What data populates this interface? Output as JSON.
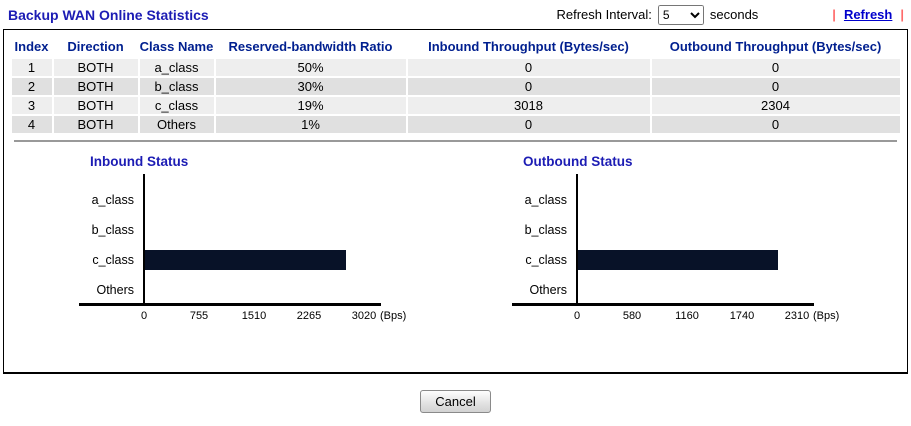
{
  "header": {
    "title": "Backup WAN Online Statistics",
    "refresh_interval_label": "Refresh Interval:",
    "refresh_interval_value": "5",
    "seconds_label": "seconds",
    "separator": "|",
    "refresh_link": "Refresh"
  },
  "table": {
    "columns": [
      "Index",
      "Direction",
      "Class Name",
      "Reserved-bandwidth Ratio",
      "Inbound Throughput (Bytes/sec)",
      "Outbound Throughput (Bytes/sec)"
    ],
    "rows": [
      [
        "1",
        "BOTH",
        "a_class",
        "50%",
        "0",
        "0"
      ],
      [
        "2",
        "BOTH",
        "b_class",
        "30%",
        "0",
        "0"
      ],
      [
        "3",
        "BOTH",
        "c_class",
        "19%",
        "3018",
        "2304"
      ],
      [
        "4",
        "BOTH",
        "Others",
        "1%",
        "0",
        "0"
      ]
    ]
  },
  "chart_data": [
    {
      "type": "bar",
      "orientation": "horizontal",
      "title": "Inbound Status",
      "categories": [
        "a_class",
        "b_class",
        "c_class",
        "Others"
      ],
      "values": [
        0,
        0,
        3018,
        0
      ],
      "xlabel": "(Bps)",
      "ylabel": "",
      "xlim": [
        0,
        3020
      ],
      "ticks": [
        0,
        755,
        1510,
        2265,
        3020
      ],
      "unit": "(Bps)",
      "bar_color": "#081228",
      "grid": false,
      "legend": "none"
    },
    {
      "type": "bar",
      "orientation": "horizontal",
      "title": "Outbound Status",
      "categories": [
        "a_class",
        "b_class",
        "c_class",
        "Others"
      ],
      "values": [
        0,
        0,
        2304,
        0
      ],
      "xlabel": "(Bps)",
      "ylabel": "",
      "xlim": [
        0,
        2310
      ],
      "ticks": [
        0,
        580,
        1160,
        1740,
        2310
      ],
      "unit": "(Bps)",
      "bar_color": "#081228",
      "grid": false,
      "legend": "none"
    }
  ],
  "footer": {
    "cancel_label": "Cancel"
  },
  "colors": {
    "title_blue": "#1c1cb4",
    "table_header_blue": "#001f8f",
    "link_blue": "#0000cc",
    "pipe_red": "#ff6a6a",
    "bar_navy": "#081228",
    "row_odd": "#eeeeee",
    "row_even": "#e0e0e0",
    "hr_gray": "#999999"
  }
}
